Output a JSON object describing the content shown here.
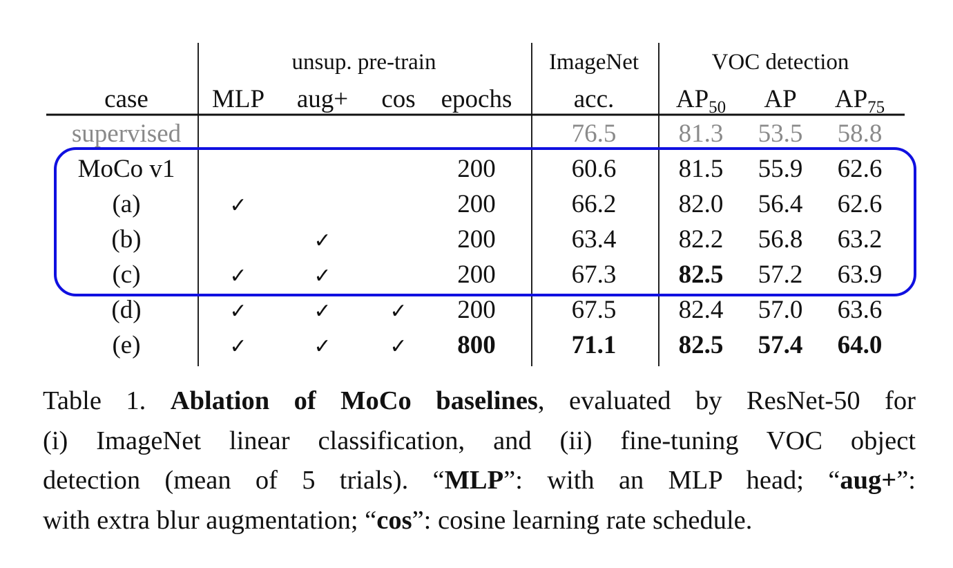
{
  "table": {
    "groups": [
      "unsup. pre-train",
      "ImageNet",
      "VOC detection"
    ],
    "columns": [
      {
        "text": "case"
      },
      {
        "text": "MLP"
      },
      {
        "text": "aug+"
      },
      {
        "text": "cos"
      },
      {
        "text": "epochs"
      },
      {
        "text": "acc."
      },
      {
        "text": "AP",
        "sub": "50"
      },
      {
        "text": "AP"
      },
      {
        "text": "AP",
        "sub": "75"
      }
    ],
    "rows": [
      {
        "cells": [
          "supervised",
          null,
          null,
          null,
          null,
          "76.5",
          "81.3",
          "53.5",
          "58.8"
        ],
        "muted": true,
        "bold": []
      },
      {
        "cells": [
          "MoCo v1",
          null,
          null,
          null,
          "200",
          "60.6",
          "81.5",
          "55.9",
          "62.6"
        ],
        "muted": false,
        "bold": []
      },
      {
        "cells": [
          "(a)",
          "✓",
          null,
          null,
          "200",
          "66.2",
          "82.0",
          "56.4",
          "62.6"
        ],
        "muted": false,
        "bold": []
      },
      {
        "cells": [
          "(b)",
          null,
          "✓",
          null,
          "200",
          "63.4",
          "82.2",
          "56.8",
          "63.2"
        ],
        "muted": false,
        "bold": []
      },
      {
        "cells": [
          "(c)",
          "✓",
          "✓",
          null,
          "200",
          "67.3",
          "82.5",
          "57.2",
          "63.9"
        ],
        "muted": false,
        "bold": [
          6
        ]
      },
      {
        "cells": [
          "(d)",
          "✓",
          "✓",
          "✓",
          "200",
          "67.5",
          "82.4",
          "57.0",
          "63.6"
        ],
        "muted": false,
        "bold": []
      },
      {
        "cells": [
          "(e)",
          "✓",
          "✓",
          "✓",
          "800",
          "71.1",
          "82.5",
          "57.4",
          "64.0"
        ],
        "muted": false,
        "bold": [
          4,
          5,
          6,
          7,
          8
        ]
      }
    ]
  },
  "caption": {
    "lines": [
      [
        {
          "text": "Table 1. "
        },
        {
          "text": "Ablation of MoCo baselines",
          "bold": true
        },
        {
          "text": ", evaluated by ResNet-50 for"
        }
      ],
      [
        {
          "text": "(i) ImageNet linear classification, and (ii) fine-tuning VOC object"
        }
      ],
      [
        {
          "text": "detection (mean of 5 trials). “"
        },
        {
          "text": "MLP",
          "bold": true
        },
        {
          "text": "”: with an MLP head; “"
        },
        {
          "text": "aug+",
          "bold": true
        },
        {
          "text": "”:"
        }
      ],
      [
        {
          "text": "with extra blur augmentation; “"
        },
        {
          "text": "cos",
          "bold": true
        },
        {
          "text": "”: cosine learning rate schedule."
        }
      ]
    ]
  }
}
